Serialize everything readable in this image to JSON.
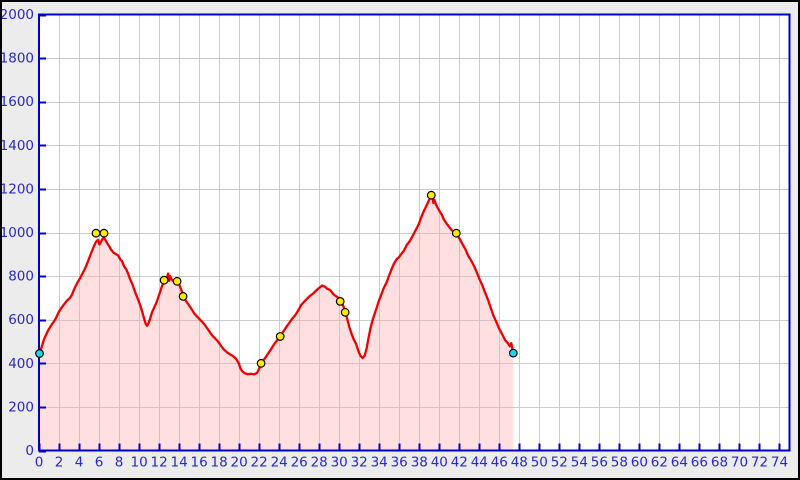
{
  "chart_data": {
    "type": "area",
    "title": "",
    "xlabel": "",
    "ylabel": "",
    "xlim": [
      0,
      75
    ],
    "ylim": [
      0,
      2000
    ],
    "grid": true,
    "x_ticks": [
      0,
      2,
      4,
      6,
      8,
      10,
      12,
      14,
      16,
      18,
      20,
      22,
      24,
      26,
      28,
      30,
      32,
      34,
      36,
      38,
      40,
      42,
      44,
      46,
      48,
      50,
      52,
      54,
      56,
      58,
      60,
      62,
      64,
      66,
      68,
      70,
      72,
      74
    ],
    "y_ticks": [
      0,
      200,
      400,
      600,
      800,
      1000,
      1200,
      1400,
      1600,
      1800,
      2000
    ],
    "series": [
      {
        "name": "elevation-profile",
        "points": [
          [
            0.0,
            445
          ],
          [
            0.15,
            458
          ],
          [
            0.3,
            480
          ],
          [
            0.5,
            510
          ],
          [
            0.7,
            530
          ],
          [
            0.9,
            550
          ],
          [
            1.1,
            565
          ],
          [
            1.3,
            580
          ],
          [
            1.5,
            592
          ],
          [
            1.7,
            608
          ],
          [
            1.9,
            628
          ],
          [
            2.1,
            645
          ],
          [
            2.3,
            658
          ],
          [
            2.5,
            670
          ],
          [
            2.7,
            682
          ],
          [
            2.9,
            692
          ],
          [
            3.1,
            700
          ],
          [
            3.3,
            715
          ],
          [
            3.5,
            738
          ],
          [
            3.7,
            758
          ],
          [
            3.9,
            775
          ],
          [
            4.1,
            790
          ],
          [
            4.3,
            808
          ],
          [
            4.5,
            825
          ],
          [
            4.7,
            845
          ],
          [
            4.9,
            868
          ],
          [
            5.1,
            892
          ],
          [
            5.3,
            915
          ],
          [
            5.5,
            938
          ],
          [
            5.7,
            958
          ],
          [
            5.9,
            966
          ],
          [
            6.05,
            945
          ],
          [
            6.2,
            958
          ],
          [
            6.35,
            970
          ],
          [
            6.5,
            975
          ],
          [
            6.65,
            965
          ],
          [
            6.8,
            952
          ],
          [
            7.0,
            938
          ],
          [
            7.2,
            922
          ],
          [
            7.45,
            908
          ],
          [
            7.7,
            900
          ],
          [
            7.9,
            895
          ],
          [
            8.1,
            878
          ],
          [
            8.3,
            868
          ],
          [
            8.5,
            845
          ],
          [
            8.7,
            832
          ],
          [
            8.9,
            812
          ],
          [
            9.1,
            786
          ],
          [
            9.3,
            766
          ],
          [
            9.5,
            740
          ],
          [
            9.7,
            715
          ],
          [
            9.9,
            692
          ],
          [
            10.1,
            668
          ],
          [
            10.3,
            638
          ],
          [
            10.5,
            605
          ],
          [
            10.65,
            582
          ],
          [
            10.8,
            572
          ],
          [
            10.95,
            585
          ],
          [
            11.1,
            605
          ],
          [
            11.3,
            635
          ],
          [
            11.5,
            655
          ],
          [
            11.7,
            675
          ],
          [
            11.9,
            700
          ],
          [
            12.1,
            728
          ],
          [
            12.3,
            755
          ],
          [
            12.5,
            780
          ],
          [
            12.65,
            770
          ],
          [
            12.8,
            795
          ],
          [
            12.9,
            812
          ],
          [
            13.0,
            778
          ],
          [
            13.1,
            800
          ],
          [
            13.25,
            785
          ],
          [
            13.4,
            778
          ],
          [
            13.55,
            782
          ],
          [
            13.7,
            780
          ],
          [
            13.85,
            775
          ],
          [
            14.0,
            762
          ],
          [
            14.2,
            740
          ],
          [
            14.4,
            710
          ],
          [
            14.6,
            692
          ],
          [
            14.9,
            672
          ],
          [
            15.2,
            652
          ],
          [
            15.5,
            630
          ],
          [
            15.8,
            614
          ],
          [
            16.1,
            600
          ],
          [
            16.4,
            586
          ],
          [
            16.7,
            568
          ],
          [
            17.0,
            548
          ],
          [
            17.3,
            528
          ],
          [
            17.6,
            514
          ],
          [
            17.9,
            500
          ],
          [
            18.2,
            480
          ],
          [
            18.5,
            462
          ],
          [
            18.8,
            450
          ],
          [
            19.1,
            441
          ],
          [
            19.4,
            433
          ],
          [
            19.7,
            420
          ],
          [
            19.95,
            402
          ],
          [
            20.15,
            375
          ],
          [
            20.35,
            362
          ],
          [
            20.6,
            353
          ],
          [
            20.9,
            350
          ],
          [
            21.2,
            352
          ],
          [
            21.5,
            349
          ],
          [
            21.8,
            356
          ],
          [
            22.0,
            375
          ],
          [
            22.2,
            398
          ],
          [
            22.4,
            412
          ],
          [
            22.6,
            425
          ],
          [
            22.9,
            445
          ],
          [
            23.2,
            466
          ],
          [
            23.5,
            488
          ],
          [
            23.8,
            506
          ],
          [
            24.1,
            522
          ],
          [
            24.4,
            545
          ],
          [
            24.7,
            566
          ],
          [
            25.0,
            585
          ],
          [
            25.3,
            605
          ],
          [
            25.6,
            620
          ],
          [
            25.9,
            642
          ],
          [
            26.2,
            668
          ],
          [
            26.5,
            683
          ],
          [
            26.8,
            697
          ],
          [
            27.1,
            710
          ],
          [
            27.4,
            720
          ],
          [
            27.7,
            734
          ],
          [
            28.0,
            746
          ],
          [
            28.3,
            757
          ],
          [
            28.55,
            752
          ],
          [
            28.8,
            742
          ],
          [
            29.1,
            736
          ],
          [
            29.4,
            718
          ],
          [
            29.7,
            707
          ],
          [
            30.0,
            698
          ],
          [
            30.15,
            686
          ],
          [
            30.4,
            665
          ],
          [
            30.6,
            636
          ],
          [
            30.8,
            605
          ],
          [
            31.0,
            568
          ],
          [
            31.2,
            540
          ],
          [
            31.45,
            510
          ],
          [
            31.7,
            488
          ],
          [
            31.95,
            452
          ],
          [
            32.15,
            433
          ],
          [
            32.35,
            424
          ],
          [
            32.55,
            436
          ],
          [
            32.75,
            470
          ],
          [
            32.95,
            520
          ],
          [
            33.15,
            565
          ],
          [
            33.35,
            600
          ],
          [
            33.55,
            628
          ],
          [
            33.75,
            655
          ],
          [
            33.95,
            685
          ],
          [
            34.15,
            708
          ],
          [
            34.45,
            745
          ],
          [
            34.75,
            772
          ],
          [
            34.95,
            798
          ],
          [
            35.15,
            822
          ],
          [
            35.45,
            855
          ],
          [
            35.75,
            878
          ],
          [
            35.95,
            885
          ],
          [
            36.15,
            898
          ],
          [
            36.45,
            915
          ],
          [
            36.75,
            942
          ],
          [
            37.05,
            960
          ],
          [
            37.35,
            985
          ],
          [
            37.65,
            1012
          ],
          [
            37.95,
            1038
          ],
          [
            38.15,
            1065
          ],
          [
            38.45,
            1098
          ],
          [
            38.75,
            1126
          ],
          [
            38.95,
            1146
          ],
          [
            39.15,
            1163
          ],
          [
            39.3,
            1171
          ],
          [
            39.4,
            1136
          ],
          [
            39.5,
            1150
          ],
          [
            39.65,
            1130
          ],
          [
            39.85,
            1112
          ],
          [
            40.05,
            1096
          ],
          [
            40.25,
            1082
          ],
          [
            40.45,
            1060
          ],
          [
            40.75,
            1040
          ],
          [
            40.95,
            1028
          ],
          [
            41.25,
            1010
          ],
          [
            41.55,
            1002
          ],
          [
            41.75,
            996
          ],
          [
            42.0,
            974
          ],
          [
            42.3,
            948
          ],
          [
            42.6,
            924
          ],
          [
            42.9,
            892
          ],
          [
            43.2,
            870
          ],
          [
            43.5,
            844
          ],
          [
            43.8,
            812
          ],
          [
            44.0,
            788
          ],
          [
            44.3,
            758
          ],
          [
            44.6,
            722
          ],
          [
            44.9,
            688
          ],
          [
            45.1,
            660
          ],
          [
            45.4,
            620
          ],
          [
            45.7,
            590
          ],
          [
            46.0,
            558
          ],
          [
            46.3,
            532
          ],
          [
            46.6,
            505
          ],
          [
            46.9,
            490
          ],
          [
            47.05,
            478
          ],
          [
            47.2,
            492
          ],
          [
            47.3,
            468
          ],
          [
            47.4,
            450
          ]
        ]
      }
    ],
    "waypoint_markers": {
      "yellow": [
        [
          5.7,
          997
        ],
        [
          6.5,
          997
        ],
        [
          12.5,
          781
        ],
        [
          13.8,
          776
        ],
        [
          14.4,
          707
        ],
        [
          22.2,
          400
        ],
        [
          24.1,
          523
        ],
        [
          30.1,
          684
        ],
        [
          30.6,
          634
        ],
        [
          39.2,
          1171
        ],
        [
          41.7,
          997
        ]
      ],
      "cyan": [
        [
          0.05,
          445
        ],
        [
          47.4,
          447
        ]
      ]
    },
    "legend": null
  },
  "colors": {
    "outer_background": "#ececec",
    "plot_background": "#ffffff",
    "outer_border": "#000000",
    "axis": "#0000c8",
    "tick_label": "#2929c8",
    "gridline": "#cccccc",
    "line": "#ee0000",
    "area_fill": "rgba(255,158,158,0.33)",
    "marker_yellow": "#ffec00",
    "marker_cyan": "#22d8e8",
    "marker_outline": "#000000"
  }
}
